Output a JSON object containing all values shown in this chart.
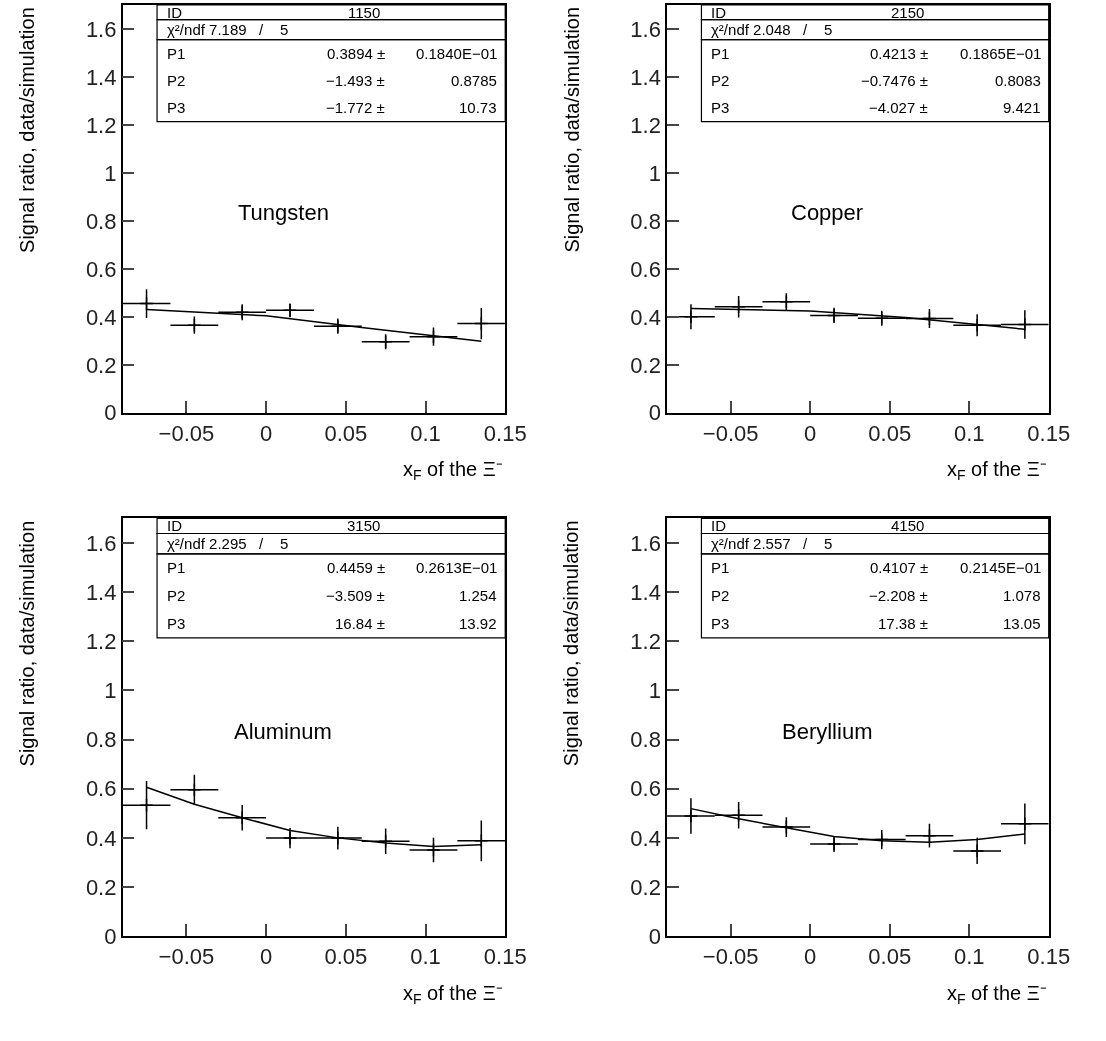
{
  "chart_data": [
    {
      "type": "scatter",
      "xlabel": "x$_{F}$ of the Ξ⁻",
      "ylabel": "Signal ratio, data/simulation",
      "xlim": [
        -0.09,
        0.15
      ],
      "ylim": [
        0,
        1.7
      ],
      "xticks": [
        -0.05,
        0,
        0.05,
        0.1,
        0.15
      ],
      "yticks": [
        0,
        0.2,
        0.4,
        0.6,
        0.8,
        1,
        1.2,
        1.4,
        1.6
      ],
      "annotations": [
        "Tungsten",
        "ID",
        "1150",
        "χ²/ndf 7.189   /    5",
        "P1",
        "0.3894 ±",
        "0.1840E−01",
        "P2",
        "−1.493 ±",
        "0.8785",
        "P3",
        "−1.772 ±",
        "10.73"
      ],
      "series": [
        {
          "color": "#000000",
          "marker": "cross",
          "x": [
            -0.075,
            -0.045,
            -0.015,
            0.015,
            0.045,
            0.075,
            0.105,
            0.135
          ],
          "values": [
            0.455,
            0.365,
            0.419,
            0.427,
            0.361,
            0.296,
            0.317,
            0.372
          ],
          "errors": [
            0.06,
            0.036,
            0.033,
            0.029,
            0.032,
            0.031,
            0.038,
            0.065
          ],
          "xerrors": [
            0.015,
            0.015,
            0.015,
            0.015,
            0.015,
            0.015,
            0.015,
            0.015
          ]
        },
        {
          "type": "line",
          "color": "#000000",
          "x": [
            -0.075,
            0,
            0.06,
            0.135
          ],
          "values": [
            0.431,
            0.404,
            0.355,
            0.298
          ]
        }
      ]
    },
    {
      "type": "scatter",
      "xlabel": "x$_{F}$ of the Ξ⁻",
      "ylabel": "Signal ratio, data/simulation",
      "xlim": [
        -0.09,
        0.15
      ],
      "ylim": [
        0,
        1.7
      ],
      "xticks": [
        -0.05,
        0,
        0.05,
        0.1,
        0.15
      ],
      "yticks": [
        0,
        0.2,
        0.4,
        0.6,
        0.8,
        1,
        1.2,
        1.4,
        1.6
      ],
      "annotations": [
        "Copper",
        "ID",
        "2150",
        "χ²/ndf 2.048   /    5",
        "P1",
        "0.4213 ±",
        "0.1865E−01",
        "P2",
        "−0.7476 ±",
        "0.8083",
        "P3",
        "−4.027 ±",
        "9.421"
      ],
      "series": [
        {
          "color": "#000000",
          "marker": "cross",
          "x": [
            -0.075,
            -0.045,
            -0.015,
            0.015,
            0.045,
            0.075,
            0.105,
            0.135
          ],
          "values": [
            0.4,
            0.442,
            0.463,
            0.406,
            0.394,
            0.393,
            0.365,
            0.368
          ],
          "errors": [
            0.052,
            0.045,
            0.035,
            0.032,
            0.031,
            0.04,
            0.046,
            0.059
          ],
          "xerrors": [
            0.015,
            0.015,
            0.015,
            0.015,
            0.015,
            0.015,
            0.015,
            0.015
          ]
        },
        {
          "type": "line",
          "color": "#000000",
          "x": [
            -0.075,
            0,
            0.06,
            0.135
          ],
          "values": [
            0.435,
            0.424,
            0.397,
            0.348
          ]
        }
      ]
    },
    {
      "type": "scatter",
      "xlabel": "x$_{F}$ of the Ξ⁻",
      "ylabel": "Signal ratio, data/simulation",
      "xlim": [
        -0.09,
        0.15
      ],
      "ylim": [
        0,
        1.7
      ],
      "xticks": [
        -0.05,
        0,
        0.05,
        0.1,
        0.15
      ],
      "yticks": [
        0,
        0.2,
        0.4,
        0.6,
        0.8,
        1,
        1.2,
        1.4,
        1.6
      ],
      "annotations": [
        "Aluminum",
        "ID",
        "3150",
        "χ²/ndf 2.295   /    5",
        "P1",
        "0.4459 ±",
        "0.2613E−01",
        "P2",
        "−3.509 ±",
        "1.254",
        "P3",
        "16.84 ±",
        "13.92"
      ],
      "series": [
        {
          "color": "#000000",
          "marker": "cross",
          "x": [
            -0.075,
            -0.045,
            -0.015,
            0.015,
            0.045,
            0.075,
            0.105,
            0.135
          ],
          "values": [
            0.533,
            0.596,
            0.482,
            0.399,
            0.399,
            0.386,
            0.351,
            0.388
          ],
          "errors": [
            0.098,
            0.061,
            0.052,
            0.041,
            0.046,
            0.052,
            0.05,
            0.083
          ],
          "xerrors": [
            0.015,
            0.015,
            0.015,
            0.015,
            0.015,
            0.015,
            0.015,
            0.015
          ]
        },
        {
          "type": "line",
          "color": "#000000",
          "x": [
            -0.075,
            -0.045,
            -0.015,
            0.015,
            0.045,
            0.075,
            0.105,
            0.135
          ],
          "values": [
            0.606,
            0.537,
            0.482,
            0.43,
            0.4,
            0.379,
            0.365,
            0.372
          ]
        }
      ]
    },
    {
      "type": "scatter",
      "xlabel": "x$_{F}$ of the Ξ⁻",
      "ylabel": "Signal ratio, data/simulation",
      "xlim": [
        -0.09,
        0.15
      ],
      "ylim": [
        0,
        1.7
      ],
      "xticks": [
        -0.05,
        0,
        0.05,
        0.1,
        0.15
      ],
      "yticks": [
        0,
        0.2,
        0.4,
        0.6,
        0.8,
        1,
        1.2,
        1.4,
        1.6
      ],
      "annotations": [
        "Beryllium",
        "ID",
        "4150",
        "χ²/ndf 2.557   /    5",
        "P1",
        "0.4107 ±",
        "0.2145E−01",
        "P2",
        "−2.208 ±",
        "1.078",
        "P3",
        "17.38 ±",
        "13.05"
      ],
      "series": [
        {
          "color": "#000000",
          "marker": "cross",
          "x": [
            -0.075,
            -0.045,
            -0.015,
            0.015,
            0.045,
            0.075,
            0.105,
            0.135
          ],
          "values": [
            0.489,
            0.492,
            0.444,
            0.375,
            0.393,
            0.409,
            0.347,
            0.457
          ],
          "errors": [
            0.072,
            0.054,
            0.04,
            0.032,
            0.039,
            0.048,
            0.053,
            0.083
          ],
          "xerrors": [
            0.015,
            0.015,
            0.015,
            0.015,
            0.015,
            0.015,
            0.015,
            0.015
          ]
        },
        {
          "type": "line",
          "color": "#000000",
          "x": [
            -0.075,
            -0.045,
            -0.015,
            0.015,
            0.045,
            0.075,
            0.105,
            0.135
          ],
          "values": [
            0.519,
            0.478,
            0.441,
            0.406,
            0.388,
            0.382,
            0.393,
            0.416
          ]
        }
      ]
    }
  ]
}
